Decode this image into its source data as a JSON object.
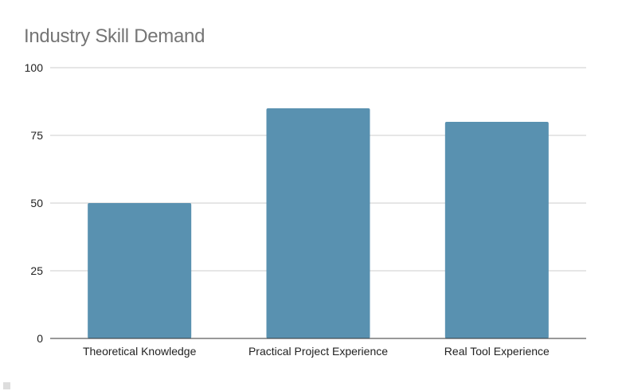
{
  "chart_data": {
    "type": "bar",
    "title": "Industry Skill Demand",
    "categories": [
      "Theoretical Knowledge",
      "Practical Project Experience",
      "Real Tool Experience"
    ],
    "values": [
      50,
      85,
      80
    ],
    "ylim": [
      0,
      100
    ],
    "yticks": [
      0,
      25,
      50,
      75,
      100
    ],
    "xlabel": "",
    "ylabel": "",
    "grid": true,
    "legend": "none",
    "bar_color": "#5991b0"
  }
}
